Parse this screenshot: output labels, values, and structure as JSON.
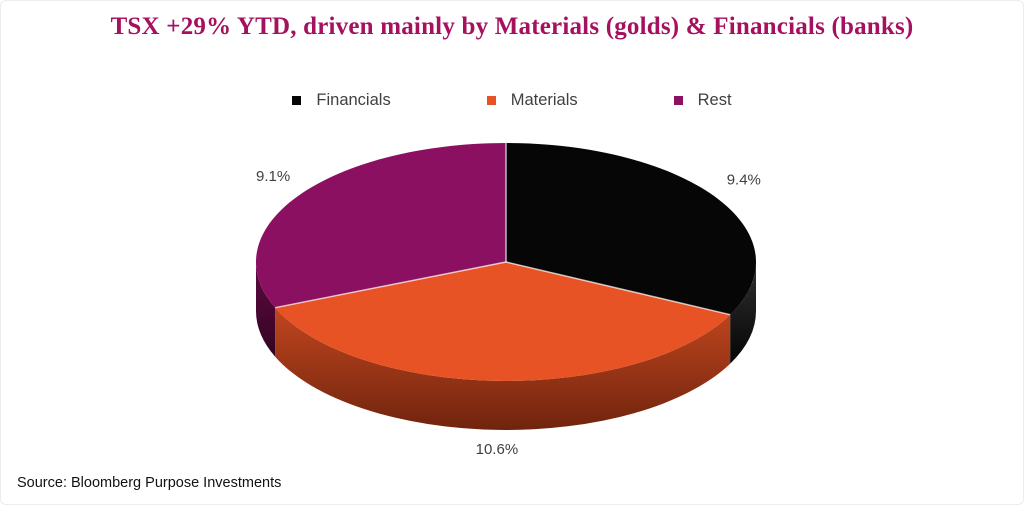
{
  "title": "TSX +29% YTD, driven mainly by Materials (golds) & Financials (banks)",
  "source": "Source: Bloomberg Purpose Investments",
  "colors": {
    "title": "#A5105F",
    "legend_text": "#404040",
    "label_text": "#3F3F3F"
  },
  "chart_data": {
    "type": "pie",
    "style": "3d",
    "title": "TSX +29% YTD, driven mainly by Materials (golds) & Financials (banks)",
    "legend_position": "top",
    "start_angle_deg": -90,
    "direction": "clockwise",
    "slices": [
      {
        "name": "Financials",
        "value": 9.4,
        "label": "9.4%",
        "color": "#060606",
        "wall_top": "#303030",
        "wall_bottom": "#050505"
      },
      {
        "name": "Materials",
        "value": 10.6,
        "label": "10.6%",
        "color": "#E85325",
        "wall_top": "#C1461F",
        "wall_bottom": "#70240D"
      },
      {
        "name": "Rest",
        "value": 9.1,
        "label": "9.1%",
        "color": "#8C1061",
        "wall_top": "#5E0941",
        "wall_bottom": "#330522"
      }
    ]
  }
}
